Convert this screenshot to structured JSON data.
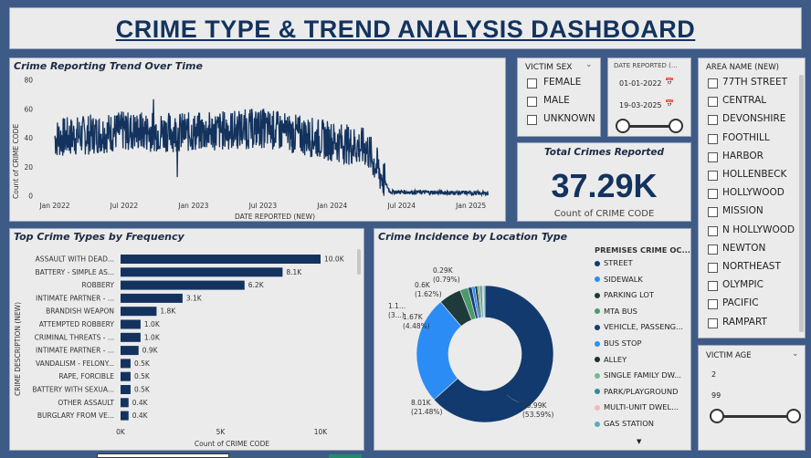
{
  "dashboard": {
    "title": "CRIME TYPE & TREND ANALYSIS DASHBOARD"
  },
  "trend": {
    "title": "Crime Reporting Trend Over Time",
    "ylabel": "Count of CRIME CODE",
    "xlabel": "DATE REPORTED (NEW)",
    "yticks": [
      "80",
      "60",
      "40",
      "20",
      "0"
    ],
    "xticks": [
      "Jan 2022",
      "Jul 2022",
      "Jan 2023",
      "Jul 2023",
      "Jan 2024",
      "Jul 2024",
      "Jan 2025"
    ]
  },
  "victim_sex": {
    "header": "VICTIM SEX",
    "options": [
      "FEMALE",
      "MALE",
      "UNKNOWN"
    ]
  },
  "date_reported": {
    "header": "DATE REPORTED (...",
    "start": "01-01-2022",
    "end": "19-03-2025"
  },
  "area": {
    "header": "AREA NAME (NEW)",
    "options": [
      "77TH STREET",
      "CENTRAL",
      "DEVONSHIRE",
      "FOOTHILL",
      "HARBOR",
      "HOLLENBECK",
      "HOLLYWOOD",
      "MISSION",
      "N HOLLYWOOD",
      "NEWTON",
      "NORTHEAST",
      "OLYMPIC",
      "PACIFIC",
      "RAMPART"
    ]
  },
  "kpi": {
    "title": "Total Crimes Reported",
    "value": "37.29K",
    "caption": "Count of CRIME CODE"
  },
  "victim_age": {
    "header": "VICTIM AGE",
    "min": "2",
    "max": "99"
  },
  "chart_data": [
    {
      "type": "line",
      "title": "Crime Reporting Trend Over Time",
      "xlabel": "DATE REPORTED (NEW)",
      "ylabel": "Count of CRIME CODE",
      "ylim": [
        0,
        80
      ],
      "x_range": [
        "Jan 2022",
        "Mar 2025"
      ],
      "series": [
        {
          "name": "Count of CRIME CODE",
          "description_values": [
            {
              "period": "2022-01",
              "mean": 40
            },
            {
              "period": "2022-07",
              "mean": 45
            },
            {
              "period": "2023-01",
              "mean": 44
            },
            {
              "period": "2023-07",
              "mean": 47
            },
            {
              "period": "2024-01",
              "mean": 38
            },
            {
              "period": "2024-04",
              "mean": 33
            },
            {
              "period": "2024-06",
              "mean": 3
            },
            {
              "period": "2025-03",
              "mean": 2
            }
          ]
        }
      ]
    },
    {
      "type": "bar",
      "orientation": "horizontal",
      "title": "Top Crime Types by Frequency",
      "ylabel": "CRIME DESCRIPTION (NEW)",
      "xlabel": "Count of CRIME CODE",
      "xticks": [
        "0K",
        "5K",
        "10K"
      ],
      "xlim": [
        0,
        10000
      ],
      "categories": [
        "ASSAULT WITH DEAD...",
        "BATTERY - SIMPLE AS...",
        "ROBBERY",
        "INTIMATE PARTNER - ...",
        "BRANDISH WEAPON",
        "ATTEMPTED ROBBERY",
        "CRIMINAL THREATS - ...",
        "INTIMATE PARTNER - ...",
        "VANDALISM - FELONY...",
        "RAPE, FORCIBLE",
        "BATTERY WITH SEXUA...",
        "OTHER ASSAULT",
        "BURGLARY FROM VE..."
      ],
      "values": [
        10000,
        8100,
        6200,
        3100,
        1800,
        1000,
        1000,
        900,
        500,
        500,
        500,
        400,
        400
      ],
      "labels": [
        "10.0K",
        "8.1K",
        "6.2K",
        "3.1K",
        "1.8K",
        "1.0K",
        "1.0K",
        "0.9K",
        "0.5K",
        "0.5K",
        "0.5K",
        "0.4K",
        "0.4K"
      ]
    },
    {
      "type": "pie",
      "donut": true,
      "title": "Crime Incidence by Location Type",
      "legend_title": "PREMISES CRIME OC...",
      "categories": [
        "STREET",
        "SIDEWALK",
        "PARKING LOT",
        "MTA BUS",
        "VEHICLE, PASSENG...",
        "BUS STOP",
        "ALLEY",
        "SINGLE FAMILY DW...",
        "PARK/PLAYGROUND",
        "MULTI-UNIT DWEL...",
        "GAS STATION"
      ],
      "colors": [
        "#123a6e",
        "#2b8cf5",
        "#1f3a3a",
        "#4c9a6a",
        "#1b3a70",
        "#2790f0",
        "#1e2e2e",
        "#74b890",
        "#2f89a0",
        "#f2b8c0",
        "#55b0b8"
      ],
      "values": [
        53.59,
        21.48,
        4.48,
        1.62,
        0.79,
        0.6,
        0.5,
        0.5,
        0.4,
        0.3,
        0.3
      ],
      "labels": [
        {
          "value": "19.99K",
          "pct": "(53.59%)"
        },
        {
          "value": "8.01K",
          "pct": "(21.48%)"
        },
        {
          "value": "1.67K",
          "pct": "(4.48%)"
        },
        {
          "value": "0.6K",
          "pct": "(1.62%)"
        },
        {
          "value": "0.29K",
          "pct": "(0.79%)"
        },
        {
          "value": "1.1...",
          "pct": "(3...)"
        }
      ]
    }
  ]
}
